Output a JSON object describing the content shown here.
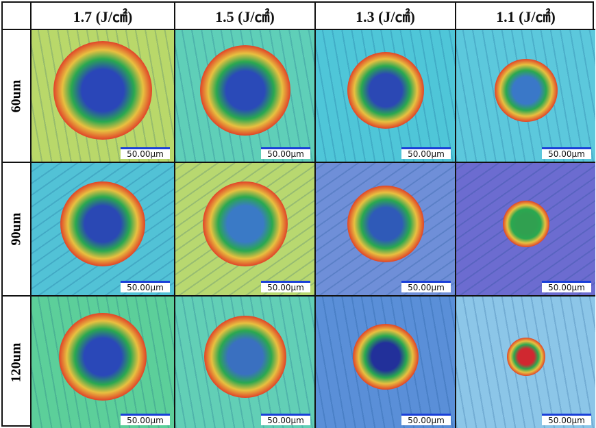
{
  "columns": [
    "1.7 (J/㎠)",
    "1.5 (J/㎠)",
    "1.3 (J/㎠)",
    "1.1 (J/㎠)"
  ],
  "rows": [
    "60um",
    "90um",
    "120um"
  ],
  "scale_bar_label": "50.00μm",
  "colormap": [
    "#2a3fb0",
    "#1e7fd0",
    "#27b040",
    "#e8d040",
    "#e03a2a"
  ]
}
